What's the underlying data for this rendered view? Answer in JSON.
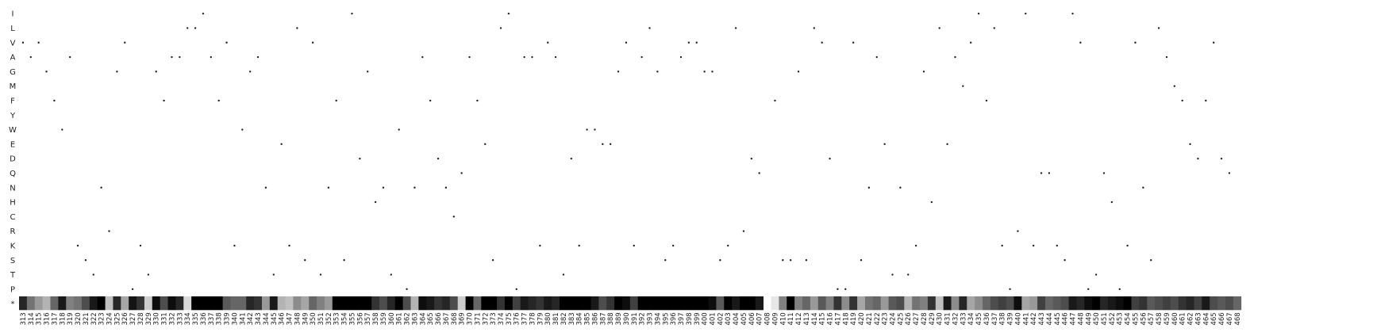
{
  "chart_data": {
    "type": "heatmap",
    "title": "",
    "xlabel": "",
    "ylabel": "",
    "colorscale": {
      "low": "#ffffff",
      "high": "#000000"
    },
    "y_labels": [
      "I",
      "L",
      "V",
      "A",
      "G",
      "M",
      "F",
      "Y",
      "W",
      "E",
      "D",
      "Q",
      "N",
      "H",
      "C",
      "R",
      "K",
      "S",
      "T",
      "P",
      "*"
    ],
    "x_start": 313,
    "x_end": 468,
    "missing_positions": [
      408
    ],
    "wildtype_rows": "VAVGFWAKSTNRGVPKTGFAALLIAFVKWGANTEKLSVTNFSIDGHNTWPNAFDNCQAFESLIPAAKVATDKWWEEGVKALGSKAVVGGSKLRDQKFSSGSLVDPPVSNAETNTKGHLEAMVIFLKPRIKQQKSIVPTQHPKVNSLAMFEDFVDQ",
    "stop_intensity": [
      0.85,
      0.55,
      0.4,
      0.3,
      0.6,
      0.9,
      0.5,
      0.55,
      0.7,
      0.9,
      1,
      0.25,
      0.85,
      0.35,
      0.92,
      0.8,
      0.2,
      0.95,
      0.7,
      0.95,
      0.85,
      0.15,
      1,
      1,
      1,
      1,
      0.65,
      0.6,
      0.6,
      0.85,
      0.8,
      0.4,
      0.9,
      0.3,
      0.25,
      0.45,
      0.35,
      0.6,
      0.5,
      0.4,
      1,
      1,
      1,
      1,
      1,
      0.8,
      0.7,
      0.85,
      1,
      0.7,
      0.3,
      0.95,
      0.9,
      0.8,
      0.85,
      0.7,
      0.2,
      1,
      0.6,
      1,
      1,
      0.8,
      1,
      0.75,
      0.9,
      0.85,
      0.8,
      0.9,
      0.85,
      1,
      1,
      1,
      1,
      0.9,
      0.7,
      0.8,
      1,
      0.95,
      0.75,
      1,
      1,
      1,
      1,
      1,
      1,
      1,
      1,
      1,
      0.95,
      0.65,
      1,
      0.9,
      1,
      1,
      0.9,
      0.7,
      0.1,
      0.5,
      1,
      0.5,
      0.6,
      0.4,
      0.65,
      0.5,
      0.8,
      0.45,
      0.8,
      0.35,
      0.55,
      0.6,
      0.4,
      0.65,
      0.7,
      0.3,
      0.55,
      0.5,
      0.8,
      0.25,
      0.9,
      0.45,
      0.85,
      0.35,
      0.45,
      0.6,
      0.7,
      0.75,
      0.7,
      0.95,
      0.35,
      0.4,
      0.75,
      0.6,
      0.65,
      0.7,
      0.9,
      0.85,
      0.95,
      1,
      0.85,
      0.9,
      0.95,
      1,
      0.75,
      0.8,
      0.65,
      0.7,
      0.75,
      0.7,
      0.8,
      0.85,
      0.75,
      0.9,
      0.7,
      0.65,
      0.7,
      0.6
    ]
  }
}
